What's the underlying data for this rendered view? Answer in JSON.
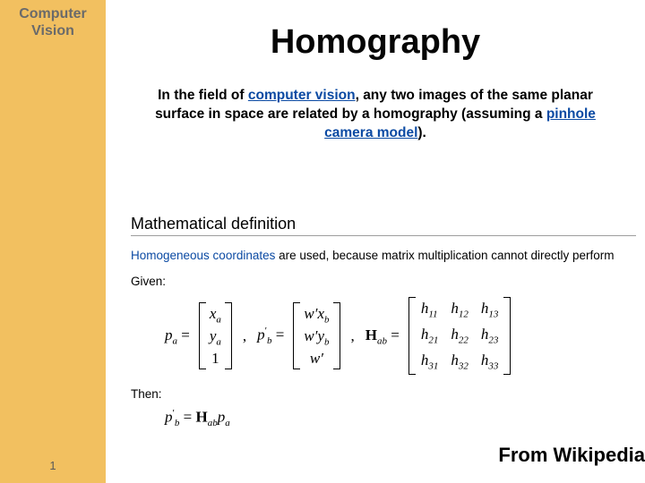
{
  "sidebar": {
    "title_l1": "Computer",
    "title_l2": "Vision",
    "bg_color": "#f2c060",
    "text_color": "#6a6a6a"
  },
  "page_number": "1",
  "title": "Homography",
  "intro": {
    "prefix": "In the field of ",
    "link1": "computer vision",
    "mid": ", any two images of the same planar surface in space are related by a homography (assuming a ",
    "link2": "pinhole camera model",
    "suffix": ")."
  },
  "math": {
    "section_title": "Mathematical definition",
    "homo_link": "Homogeneous coordinates",
    "homo_rest": " are used, because matrix multiplication cannot directly perform",
    "given": "Given:",
    "then": "Then:",
    "pa": {
      "lhs": "p",
      "lhs_sub": "a",
      "c1": "x",
      "c1_sub": "a",
      "c2": "y",
      "c2_sub": "a",
      "c3": "1"
    },
    "pbp": {
      "lhs": "p",
      "lhs_sup": "′",
      "lhs_sub": "b",
      "c1p": "w′x",
      "c1_sub": "b",
      "c2p": "w′y",
      "c2_sub": "b",
      "c3": "w′"
    },
    "Hab": {
      "H": "H",
      "ab": "ab",
      "h11": "h",
      "h12": "h",
      "h13": "h",
      "h21": "h",
      "h22": "h",
      "h23": "h",
      "h31": "h",
      "h32": "h",
      "h33": "h",
      "s11": "11",
      "s12": "12",
      "s13": "13",
      "s21": "21",
      "s22": "22",
      "s23": "23",
      "s31": "31",
      "s32": "32",
      "s33": "33"
    },
    "eq2": {
      "pbp": "p",
      "pbp_sup": "′",
      "pbp_sub": "b",
      "eq": " = ",
      "H": "H",
      "ab": "ab",
      "pa": "p",
      "pa_sub": "a"
    }
  },
  "attribution": "From Wikipedia",
  "colors": {
    "link": "#0b4aa3",
    "rule": "#9e9e9e",
    "bg": "#ffffff"
  }
}
